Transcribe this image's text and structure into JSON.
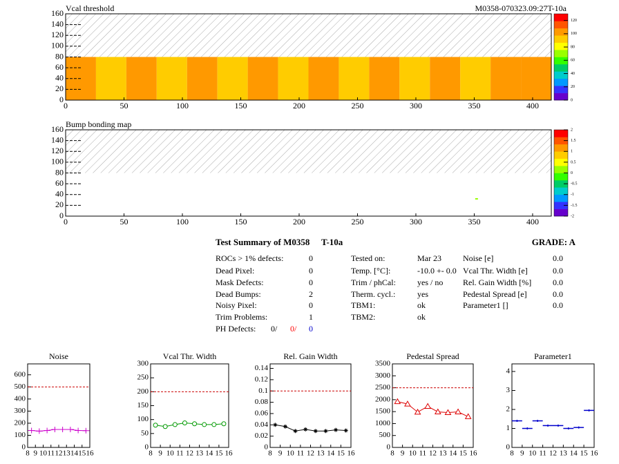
{
  "chart_data": [
    {
      "type": "heatmap",
      "title": "Vcal threshold",
      "label": "M0358-070323.09:27T-10a",
      "x_bins": [
        0,
        26,
        52,
        78,
        104,
        130,
        156,
        182,
        208,
        234,
        260,
        286,
        312,
        338,
        364,
        390,
        416
      ],
      "y_bins": [
        0,
        80
      ],
      "values": [
        [
          100,
          90,
          105,
          95,
          104,
          95,
          103,
          94,
          104,
          95,
          102,
          95,
          103,
          96,
          106,
          100
        ]
      ],
      "xlim": [
        0,
        416
      ],
      "xticks": [
        0,
        50,
        100,
        150,
        200,
        250,
        300,
        350,
        400
      ],
      "ylim": [
        0,
        160
      ],
      "yticks": [
        0,
        20,
        40,
        60,
        80,
        100,
        120,
        140,
        160
      ],
      "zlim": [
        0,
        130
      ],
      "zticks": [
        0,
        20,
        40,
        60,
        80,
        100,
        120
      ],
      "hatch_from": 80,
      "palette": [
        "#6600cc",
        "#3333ff",
        "#0099ff",
        "#00cccc",
        "#00cc66",
        "#33ff00",
        "#99ff00",
        "#ffff00",
        "#ffcc00",
        "#ff9900",
        "#ff5500",
        "#ff0000"
      ]
    },
    {
      "type": "heatmap",
      "title": "Bump bonding map",
      "points": [
        {
          "x": 352,
          "y": 32,
          "value": 0.3
        }
      ],
      "xlim": [
        0,
        416
      ],
      "xticks": [
        0,
        50,
        100,
        150,
        200,
        250,
        300,
        350,
        400
      ],
      "ylim": [
        0,
        160
      ],
      "yticks": [
        0,
        20,
        40,
        60,
        80,
        100,
        120,
        140,
        160
      ],
      "zlim": [
        -2,
        2
      ],
      "zticks": [
        -2,
        -1.5,
        -1,
        -0.5,
        0,
        0.5,
        1,
        1.5,
        2
      ],
      "hatch_from": 80,
      "palette": [
        "#6600cc",
        "#3333ff",
        "#0099ff",
        "#00cccc",
        "#00cc66",
        "#33ff00",
        "#99ff00",
        "#ffff00",
        "#ffcc00",
        "#ff9900",
        "#ff5500",
        "#ff0000"
      ]
    },
    {
      "type": "line",
      "title": "Noise",
      "x": [
        8.5,
        9.5,
        10.5,
        11.5,
        12.5,
        13.5,
        14.5,
        15.5
      ],
      "values": [
        140,
        135,
        140,
        148,
        148,
        148,
        140,
        138
      ],
      "color": "#cc00cc",
      "marker": "plus",
      "reference": 500,
      "xlim": [
        8,
        16
      ],
      "xticks": [
        8,
        9,
        10,
        11,
        12,
        13,
        14,
        15,
        16
      ],
      "ylim": [
        0,
        690
      ],
      "yticks": [
        0,
        100,
        200,
        300,
        400,
        500,
        600
      ]
    },
    {
      "type": "line",
      "title": "Vcal Thr. Width",
      "x": [
        8.5,
        9.5,
        10.5,
        11.5,
        12.5,
        13.5,
        14.5,
        15.5
      ],
      "values": [
        80,
        75,
        82,
        88,
        85,
        82,
        82,
        85
      ],
      "color": "#009900",
      "marker": "circle",
      "reference": 200,
      "xlim": [
        8,
        16
      ],
      "xticks": [
        8,
        9,
        10,
        11,
        12,
        13,
        14,
        15,
        16
      ],
      "ylim": [
        0,
        300
      ],
      "yticks": [
        0,
        50,
        100,
        150,
        200,
        250,
        300
      ]
    },
    {
      "type": "line",
      "title": "Rel. Gain Width",
      "x": [
        8.5,
        9.5,
        10.5,
        11.5,
        12.5,
        13.5,
        14.5,
        15.5
      ],
      "values": [
        0.04,
        0.037,
        0.029,
        0.032,
        0.029,
        0.029,
        0.031,
        0.03
      ],
      "color": "#000000",
      "marker": "star",
      "reference": 0.1,
      "xlim": [
        8,
        16
      ],
      "xticks": [
        8,
        9,
        10,
        11,
        12,
        13,
        14,
        15,
        16
      ],
      "ylim": [
        0,
        0.148
      ],
      "yticks": [
        0,
        0.02,
        0.04,
        0.06,
        0.08,
        0.1,
        0.12,
        0.14
      ]
    },
    {
      "type": "line",
      "title": "Pedestal Spread",
      "x": [
        8.5,
        9.5,
        10.5,
        11.5,
        12.5,
        13.5,
        14.5,
        15.5
      ],
      "values": [
        1920,
        1820,
        1480,
        1720,
        1490,
        1460,
        1490,
        1290
      ],
      "color": "#dd0000",
      "marker": "triangle",
      "reference": 2500,
      "xlim": [
        8,
        16
      ],
      "xticks": [
        8,
        9,
        10,
        11,
        12,
        13,
        14,
        15,
        16
      ],
      "ylim": [
        0,
        3500
      ],
      "yticks": [
        0,
        500,
        1000,
        1500,
        2000,
        2500,
        3000,
        3500
      ]
    },
    {
      "type": "points",
      "title": "Parameter1",
      "x": [
        8.5,
        9.5,
        10.5,
        11.5,
        12.5,
        13.5,
        14.5,
        15.5
      ],
      "values": [
        1.4,
        1,
        1.4,
        1.15,
        1.15,
        1,
        1.05,
        1.95
      ],
      "color": "#0000cc",
      "marker": "hbar",
      "xlim": [
        8,
        16
      ],
      "xticks": [
        8,
        9,
        10,
        11,
        12,
        13,
        14,
        15,
        16
      ],
      "ylim": [
        0,
        4.4
      ],
      "yticks": [
        0,
        1,
        2,
        3,
        4
      ]
    }
  ],
  "summary": {
    "title": "Test Summary of M0358",
    "test": "T-10a",
    "grade": "GRADE:  A",
    "col1": [
      [
        "ROCs > 1% defects:",
        "0"
      ],
      [
        "Dead Pixel:",
        "0"
      ],
      [
        "Mask Defects:",
        "0"
      ],
      [
        "Dead Bumps:",
        "2"
      ],
      [
        "Noisy Pixel:",
        "0"
      ],
      [
        "Trim Problems:",
        "1"
      ]
    ],
    "ph_label": "PH Defects:",
    "ph_values": [
      "0/",
      "0/",
      "0"
    ],
    "ph_colors": [
      "#000000",
      "#ff0000",
      "#0000cc"
    ],
    "col2": [
      [
        "Tested on:",
        "Mar 23"
      ],
      [
        "Temp. [°C]:",
        "-10.0 +- 0.0"
      ],
      [
        "Trim / phCal:",
        "yes / no"
      ],
      [
        "Therm. cycl.:",
        "yes"
      ],
      [
        "TBM1:",
        "ok"
      ],
      [
        "TBM2:",
        "ok"
      ]
    ],
    "col3": [
      [
        "Noise [e]",
        "0.0"
      ],
      [
        "Vcal Thr. Width [e]",
        "0.0"
      ],
      [
        "Rel. Gain Width [%]",
        "0.0"
      ],
      [
        "Pedestal Spread [e]",
        "0.0"
      ],
      [
        "Parameter1 []",
        "0.0"
      ]
    ]
  }
}
